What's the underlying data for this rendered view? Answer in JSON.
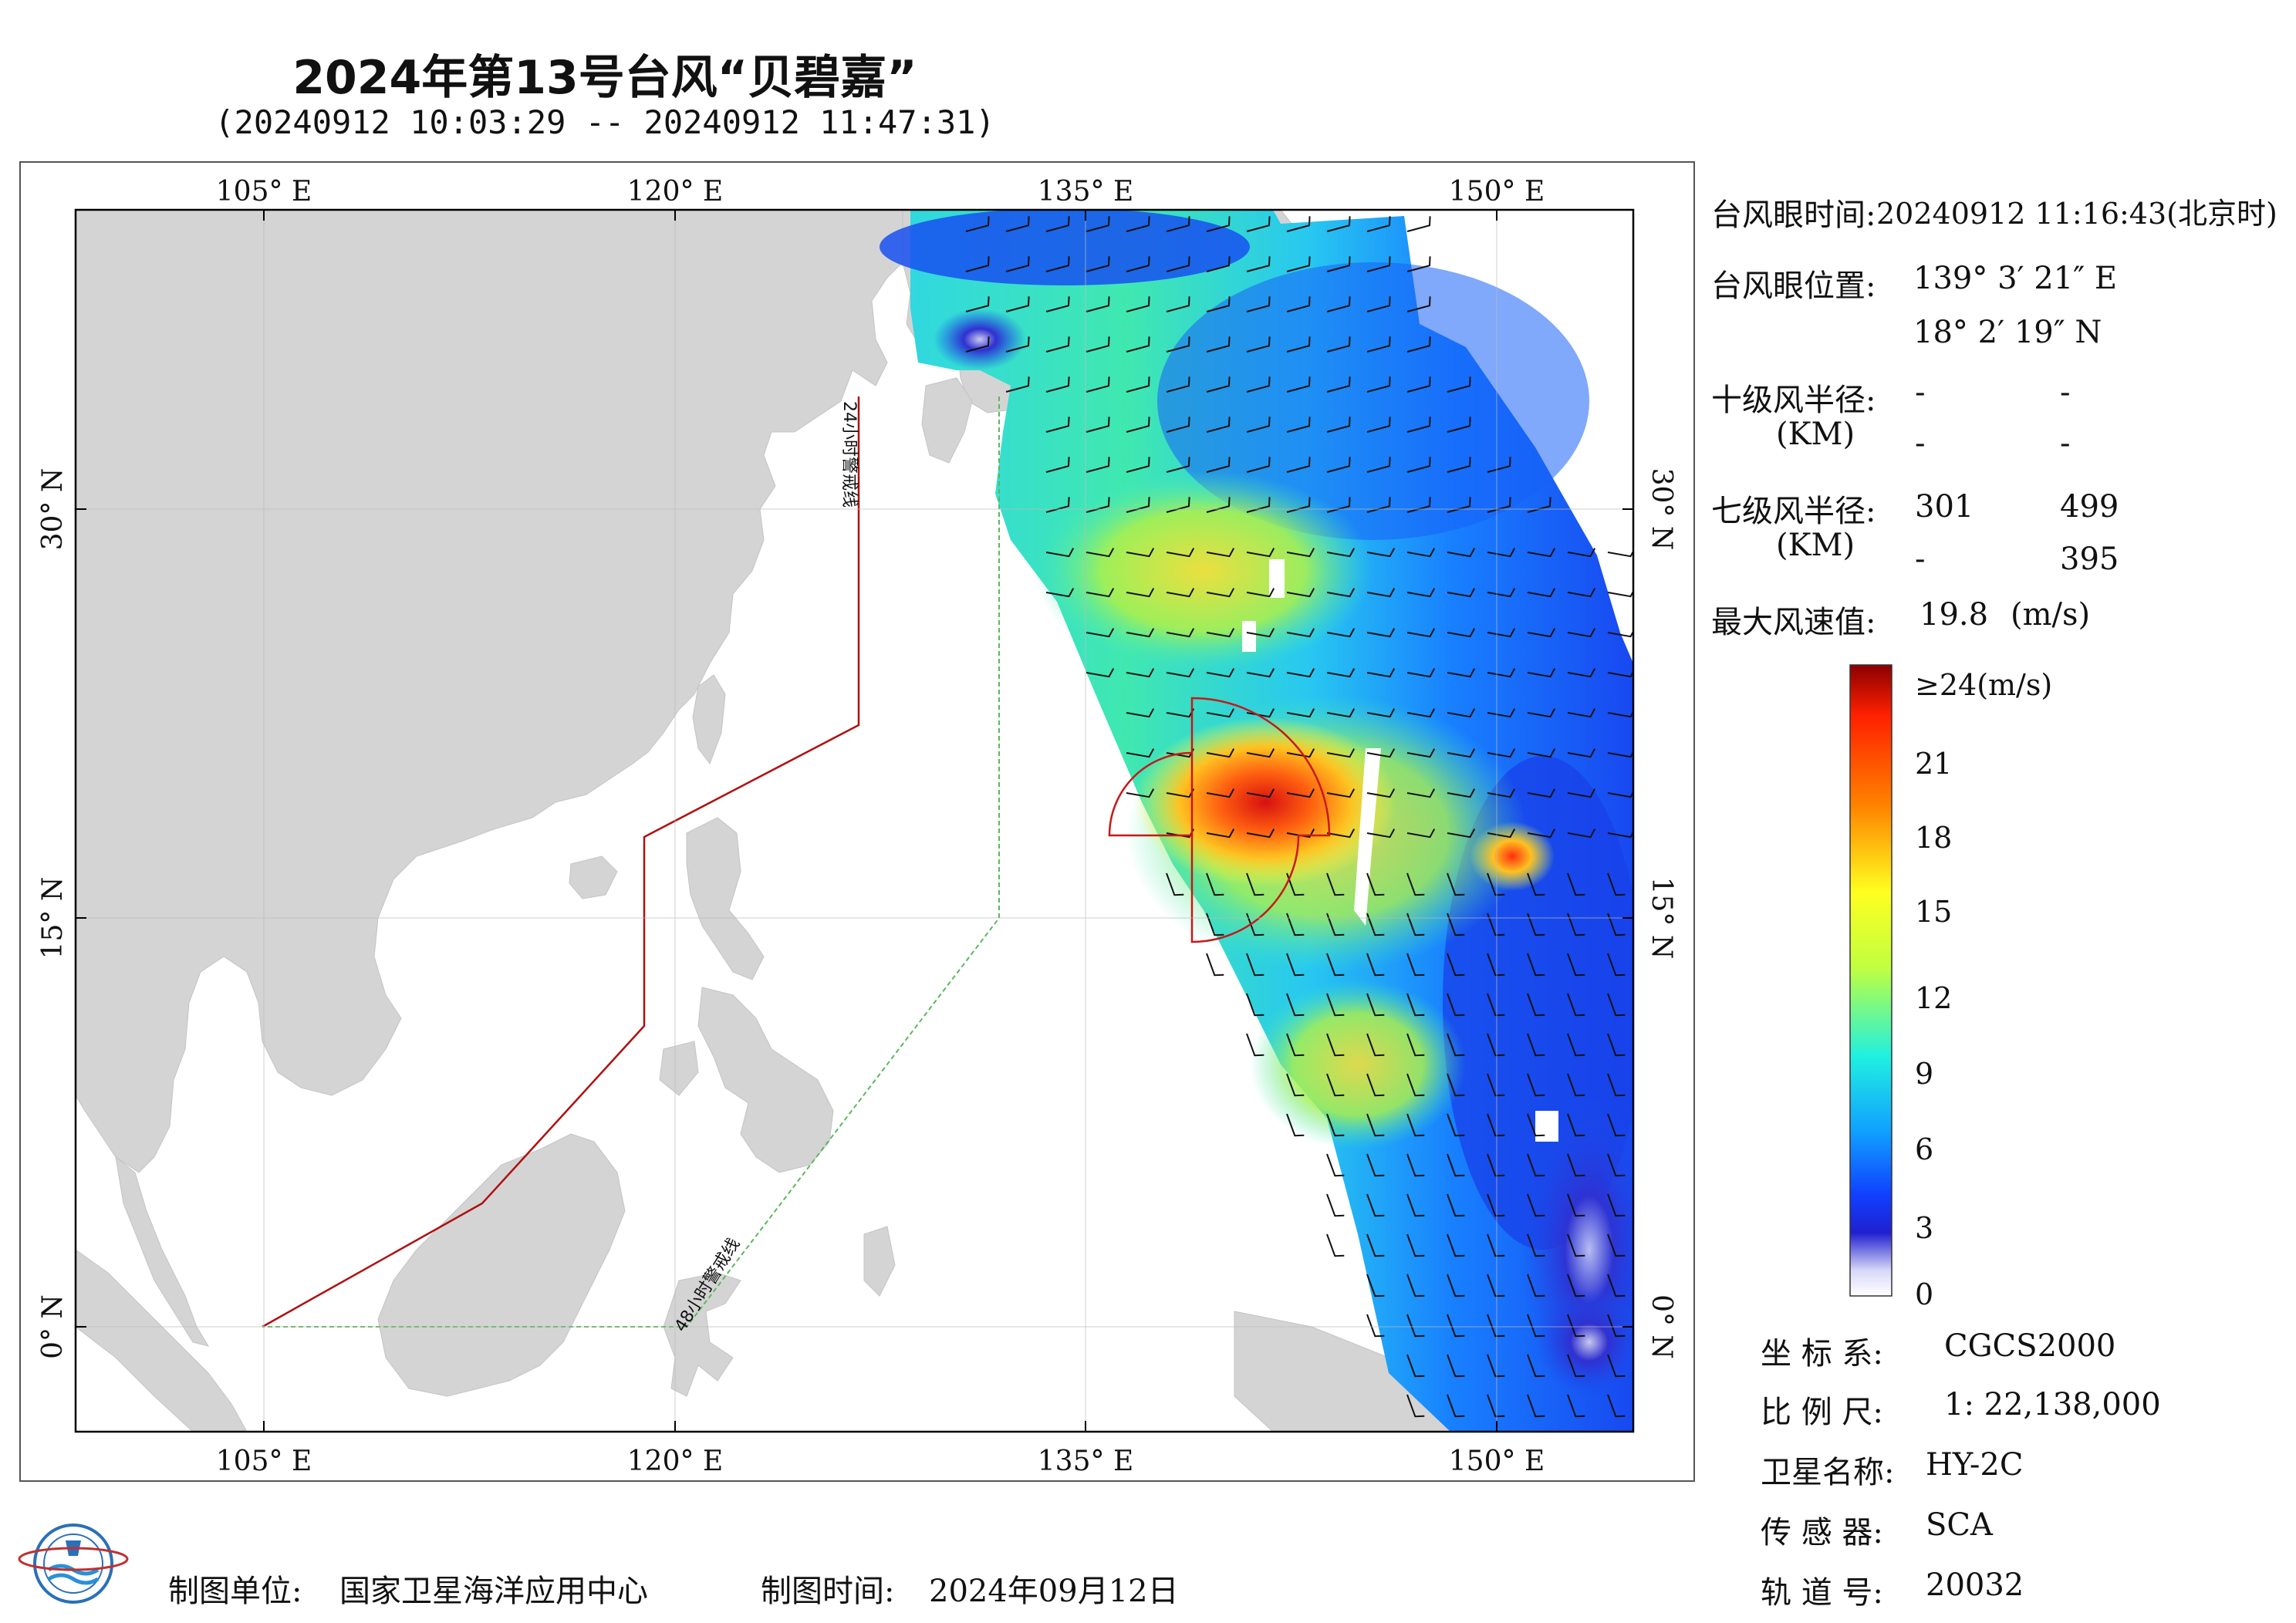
{
  "title": "2024年第13号台风“贝碧嘉”",
  "subtitle": "(20240912 10:03:29 -- 20240912 11:47:31)",
  "axes": {
    "lon_labels": [
      "105° E",
      "120° E",
      "135° E",
      "150° E"
    ],
    "lat_labels": [
      "30° N",
      "15° N",
      "0° N"
    ]
  },
  "warning_lines": {
    "line_24h": "24小时警戒线",
    "line_48h": "48小时警戒线",
    "line_24h_color": "#b01010",
    "line_48h_color": "#5cb85c"
  },
  "info": {
    "eye_time_label": "台风眼时间:",
    "eye_time_value": "20240912 11:16:43(北京时)",
    "eye_pos_label": "台风眼位置:",
    "eye_pos_lon": "139° 3′ 21″ E",
    "eye_pos_lat": "18° 2′ 19″ N",
    "r10_label": "十级风半径:",
    "r10_unit": "(KM)",
    "r10_values": [
      "-",
      "-",
      "-",
      "-"
    ],
    "r7_label": "七级风半径:",
    "r7_unit": "(KM)",
    "r7_values": [
      "301",
      "499",
      "-",
      "395"
    ],
    "max_wind_label": "最大风速值:",
    "max_wind_value": "19.8",
    "max_wind_unit": "(m/s)"
  },
  "colorbar": {
    "ticks": [
      "≥24(m/s)",
      "21",
      "18",
      "15",
      "12",
      "9",
      "6",
      "3",
      "0"
    ],
    "stops": [
      "#8b0000",
      "#ff2000",
      "#ff8000",
      "#ffff20",
      "#c0ff40",
      "#20f0e0",
      "#10a0ff",
      "#1040ff",
      "#2020d0",
      "#d8d8f8",
      "#ffffff"
    ]
  },
  "meta": {
    "crs_label": "坐 标 系:",
    "crs_value": "CGCS2000",
    "scale_label": "比 例 尺:",
    "scale_value": "1: 22,138,000",
    "satellite_label": "卫星名称:",
    "satellite_value": "HY-2C",
    "sensor_label": "传 感 器:",
    "sensor_value": "SCA",
    "orbit_label": "轨 道 号:",
    "orbit_value": "20032"
  },
  "footer": {
    "producer_label": "制图单位:",
    "producer_value": "国家卫星海洋应用中心",
    "date_label": "制图时间:",
    "date_value": "2024年09月12日"
  },
  "colors": {
    "land": "#d4d4d4",
    "frame": "#000000",
    "typhoon_circle": "#c81818"
  }
}
